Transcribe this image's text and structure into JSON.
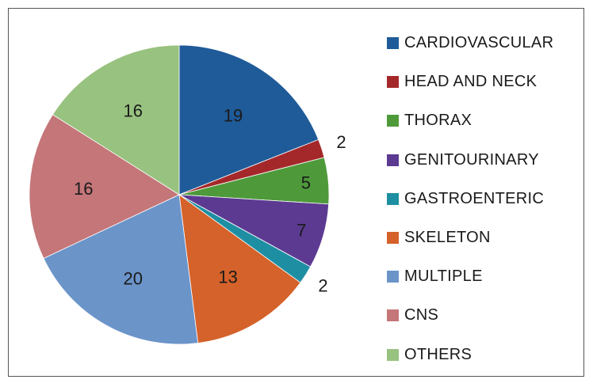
{
  "chart_data": {
    "type": "pie",
    "title": "",
    "legend_position": "right",
    "start_angle_deg": 0,
    "direction": "clockwise",
    "slices": [
      {
        "label": "CARDIOVASCULAR",
        "value": 19,
        "color": "#1f5b99"
      },
      {
        "label": "HEAD AND NECK",
        "value": 2,
        "color": "#a4282a"
      },
      {
        "label": "THORAX",
        "value": 5,
        "color": "#4e9a3b"
      },
      {
        "label": "GENITOURINARY",
        "value": 7,
        "color": "#5c3a92"
      },
      {
        "label": "GASTROENTERIC",
        "value": 2,
        "color": "#1e8fa3"
      },
      {
        "label": "SKELETON",
        "value": 13,
        "color": "#d4622a"
      },
      {
        "label": "MULTIPLE",
        "value": 20,
        "color": "#6b94c9"
      },
      {
        "label": "CNS",
        "value": 16,
        "color": "#c47679"
      },
      {
        "label": "OTHERS",
        "value": 16,
        "color": "#98c27f"
      }
    ]
  }
}
